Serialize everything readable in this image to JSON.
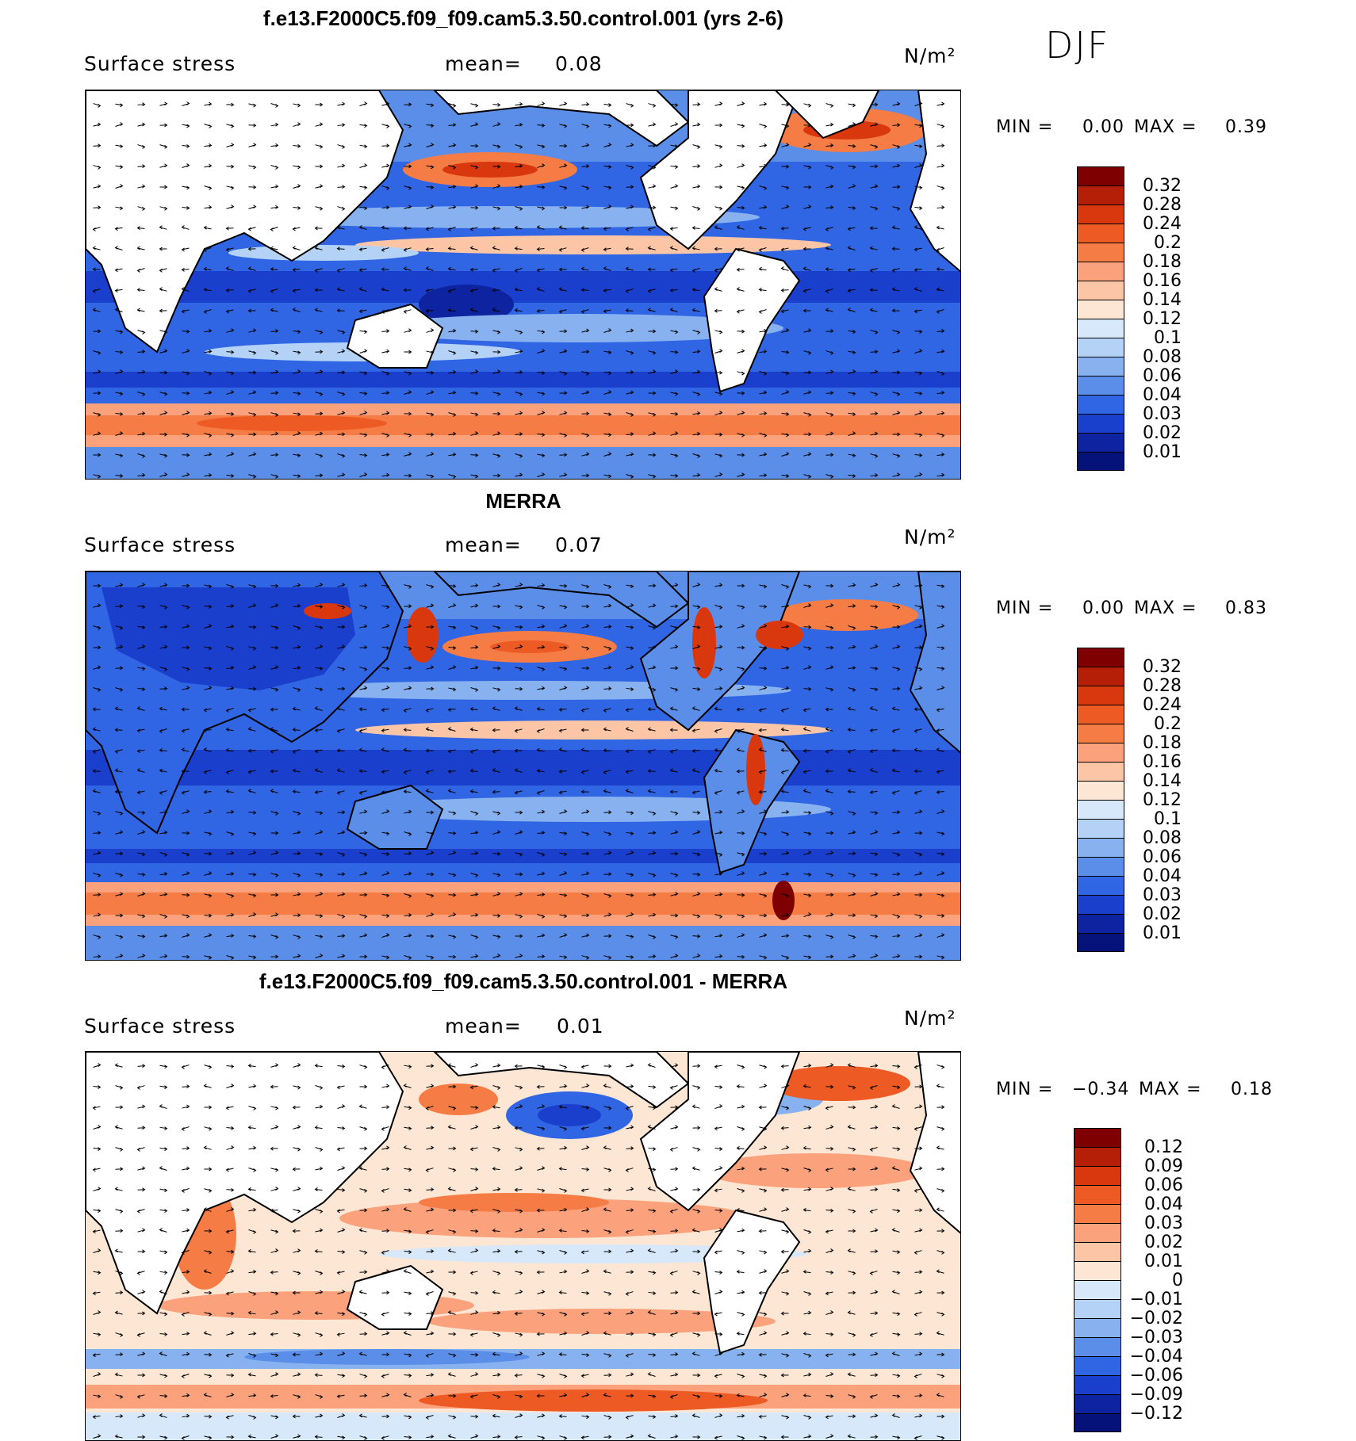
{
  "season": "DJF",
  "panels": [
    {
      "title": "f.e13.F2000C5.f09_f09.cam5.3.50.control.001 (yrs 2-6)",
      "left_label": "Surface stress",
      "mean_label": "mean=",
      "mean_value": "0.08",
      "units": "N/m²",
      "min_label": "MIN =",
      "min_value": "0.00",
      "max_label": "MAX =",
      "max_value": "0.39",
      "colorbar_levels": [
        "0.32",
        "0.28",
        "0.24",
        "0.2",
        "0.18",
        "0.16",
        "0.14",
        "0.12",
        "0.1",
        "0.08",
        "0.06",
        "0.04",
        "0.03",
        "0.02",
        "0.01"
      ],
      "colorbar_colors": [
        "#7f0000",
        "#b51f07",
        "#d9380e",
        "#ee5a24",
        "#f57c45",
        "#fba27d",
        "#fcc6a6",
        "#fde6d3",
        "#d6e8fa",
        "#b3d2f5",
        "#88b2ef",
        "#5a8ee8",
        "#3065e3",
        "#1a3fcc",
        "#0d239f",
        "#04127a"
      ]
    },
    {
      "title": "MERRA",
      "left_label": "Surface stress",
      "mean_label": "mean=",
      "mean_value": "0.07",
      "units": "N/m²",
      "min_label": "MIN =",
      "min_value": "0.00",
      "max_label": "MAX =",
      "max_value": "0.83",
      "colorbar_levels": [
        "0.32",
        "0.28",
        "0.24",
        "0.2",
        "0.18",
        "0.16",
        "0.14",
        "0.12",
        "0.1",
        "0.08",
        "0.06",
        "0.04",
        "0.03",
        "0.02",
        "0.01"
      ],
      "colorbar_colors": [
        "#7f0000",
        "#b51f07",
        "#d9380e",
        "#ee5a24",
        "#f57c45",
        "#fba27d",
        "#fcc6a6",
        "#fde6d3",
        "#d6e8fa",
        "#b3d2f5",
        "#88b2ef",
        "#5a8ee8",
        "#3065e3",
        "#1a3fcc",
        "#0d239f",
        "#04127a"
      ]
    },
    {
      "title": "f.e13.F2000C5.f09_f09.cam5.3.50.control.001 - MERRA",
      "left_label": "Surface stress",
      "mean_label": "mean=",
      "mean_value": "0.01",
      "units": "N/m²",
      "min_label": "MIN =",
      "min_value": "−0.34",
      "max_label": "MAX =",
      "max_value": "0.18",
      "colorbar_levels": [
        "0.12",
        "0.09",
        "0.06",
        "0.04",
        "0.03",
        "0.02",
        "0.01",
        "0",
        "−0.01",
        "−0.02",
        "−0.03",
        "−0.04",
        "−0.06",
        "−0.09",
        "−0.12"
      ],
      "colorbar_colors": [
        "#7f0000",
        "#b51f07",
        "#d9380e",
        "#ee5a24",
        "#f57c45",
        "#fba27d",
        "#fcc6a6",
        "#fde6d3",
        "#d6e8fa",
        "#b3d2f5",
        "#88b2ef",
        "#5a8ee8",
        "#3065e3",
        "#1a3fcc",
        "#0d239f",
        "#04127a"
      ]
    }
  ]
}
